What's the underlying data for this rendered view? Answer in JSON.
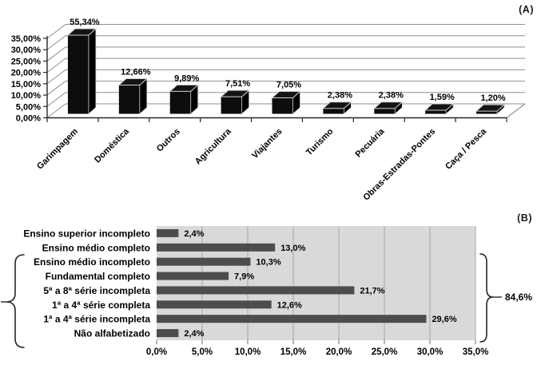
{
  "page_background": "#ffffff",
  "colors": {
    "axis": "#262626",
    "grid_a": "#8f8f8f",
    "grid_b": "#a6a6a6",
    "tick": "#7f7f7f",
    "bar3d_front": "#0d0d0d",
    "bar3d_side": "#000000",
    "bar3d_top": "#141414",
    "bar3d_highlight": "#cfcfcf",
    "text": "#000000"
  },
  "chart_data": [
    {
      "id": "A",
      "panel_label": "(A)",
      "type": "bar",
      "style": "3d-column",
      "title": "",
      "xlabel": "",
      "ylabel": "",
      "categories": [
        "Garimpagem",
        "Doméstica",
        "Outros",
        "Agricultura",
        "Viajantes",
        "Turismo",
        "Pecuária",
        "Obras-Estradas-Pontes",
        "Caça / Pesca"
      ],
      "values": [
        55.34,
        12.66,
        9.89,
        7.51,
        7.05,
        2.38,
        2.38,
        1.59,
        1.2
      ],
      "value_labels": [
        "55,34%",
        "12,66%",
        "9,89%",
        "7,51%",
        "7,05%",
        "2,38%",
        "2,38%",
        "1,59%",
        "1,20%"
      ],
      "y_tick_labels_top_to_bottom": [
        "35,00%",
        "30,00%",
        "25,00%",
        "20,00%",
        "15,00%",
        "10,00%",
        "5,00%",
        "0,00%"
      ],
      "ylim": [
        0,
        35
      ],
      "y_step": 5,
      "grid": true,
      "legend": "none",
      "bar_color": "#0d0d0d",
      "note_first_bar_exceeds_axis": true
    },
    {
      "id": "B",
      "panel_label": "(B)",
      "type": "bar",
      "style": "horizontal",
      "title": "",
      "xlabel": "",
      "ylabel": "",
      "categories": [
        "Ensino superior incompleto",
        "Ensino médio completo",
        "Ensino médio incompleto",
        "Fundamental completo",
        "5ª a 8ª série incompleta",
        "1ª a 4ª série completa",
        "1ª a 4ª série incompleta",
        "Não alfabetizado"
      ],
      "values": [
        2.4,
        13.0,
        10.3,
        7.9,
        21.7,
        12.6,
        29.6,
        2.4
      ],
      "value_labels": [
        "2,4%",
        "13,0%",
        "10,3%",
        "7,9%",
        "21,7%",
        "12,6%",
        "29,6%",
        "2,4%"
      ],
      "x_tick_labels": [
        "0,0%",
        "5,0%",
        "10,0%",
        "15,0%",
        "20,0%",
        "25,0%",
        "30,0%",
        "35,0%"
      ],
      "xlim": [
        0,
        35
      ],
      "x_step": 5,
      "grid": true,
      "legend": "none",
      "plot_background": "#d9d9d9",
      "bar_color": "#4d4d4d",
      "bracket": {
        "label": "84,6%",
        "first_row": 3,
        "last_row": 8,
        "sides": [
          "left",
          "right"
        ]
      }
    }
  ]
}
